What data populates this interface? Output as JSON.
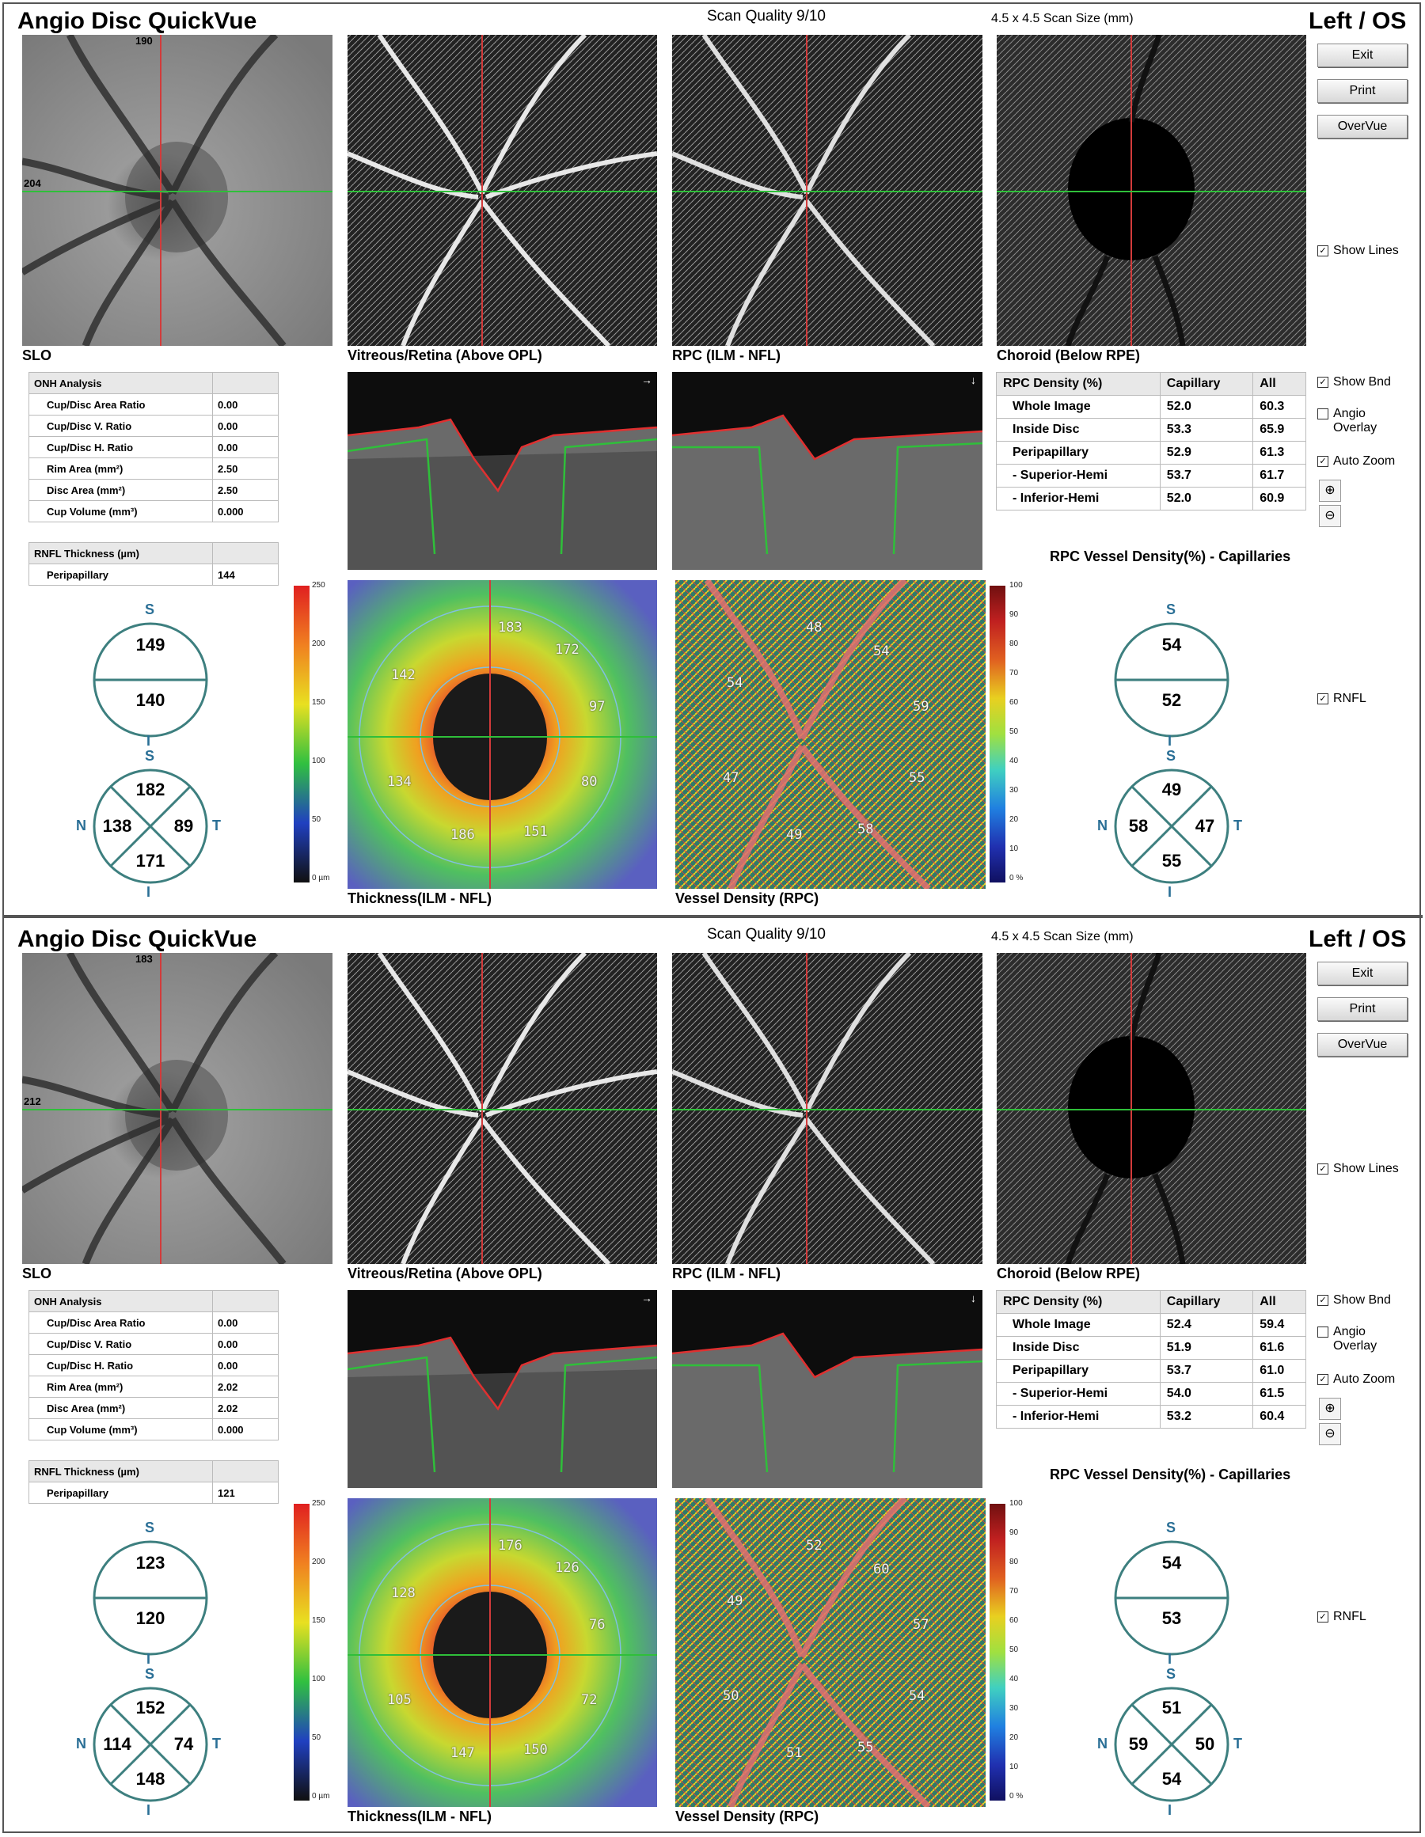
{
  "reports": [
    {
      "title": "Angio Disc QuickVue",
      "scan_quality": "Scan Quality 9/10",
      "scan_size": "4.5 x 4.5 Scan Size (mm)",
      "eye": "Left / OS",
      "buttons": [
        "Exit",
        "Print",
        "OverVue"
      ],
      "captions": {
        "slo": "SLO",
        "vitreous": "Vitreous/Retina (Above OPL)",
        "rpc": "RPC (ILM - NFL)",
        "choroid": "Choroid (Below RPE)",
        "thickness": "Thickness(ILM - NFL)",
        "vessel": "Vessel Density (RPC)"
      },
      "line_labels": {
        "vertical": "190",
        "horizontal": "204"
      },
      "checkboxes": {
        "show_lines": "Show Lines",
        "show_bnd": "Show Bnd",
        "angio_overlay": "Angio Overlay",
        "auto_zoom": "Auto Zoom",
        "rnfl": "RNFL"
      },
      "onh": {
        "header": "ONH Analysis",
        "rows": [
          {
            "label": "Cup/Disc Area Ratio",
            "value": "0.00"
          },
          {
            "label": "Cup/Disc V. Ratio",
            "value": "0.00"
          },
          {
            "label": "Cup/Disc H. Ratio",
            "value": "0.00"
          },
          {
            "label": "Rim Area (mm²)",
            "value": "2.50"
          },
          {
            "label": "Disc Area (mm²)",
            "value": "2.50"
          },
          {
            "label": "Cup Volume (mm³)",
            "value": "0.000"
          }
        ]
      },
      "rnfl": {
        "header": "RNFL Thickness (µm)",
        "label": "Peripapillary",
        "value": "144"
      },
      "rnfl_hemi": {
        "superior": "149",
        "inferior": "140"
      },
      "rnfl_quad": {
        "s": "182",
        "n": "138",
        "t": "89",
        "i": "171"
      },
      "rpc_table": {
        "header": [
          "RPC Density (%)",
          "Capillary",
          "All"
        ],
        "rows": [
          {
            "label": "Whole Image",
            "capillary": "52.0",
            "all": "60.3"
          },
          {
            "label": "Inside Disc",
            "capillary": "53.3",
            "all": "65.9"
          },
          {
            "label": "Peripapillary",
            "capillary": "52.9",
            "all": "61.3"
          },
          {
            "label": " - Superior-Hemi",
            "capillary": "53.7",
            "all": "61.7"
          },
          {
            "label": " - Inferior-Hemi",
            "capillary": "52.0",
            "all": "60.9"
          }
        ]
      },
      "rpc_title": "RPC Vessel Density(%) - Capillaries",
      "rpc_hemi": {
        "superior": "54",
        "inferior": "52"
      },
      "rpc_quad": {
        "s": "49",
        "n": "58",
        "t": "47",
        "i": "55"
      },
      "thickness_sectors": [
        "183",
        "172",
        "97",
        "80",
        "151",
        "186",
        "134",
        "142"
      ],
      "vessel_sectors": [
        "48",
        "54",
        "59",
        "55",
        "58",
        "49",
        "47",
        "54"
      ],
      "thickness_scale": [
        "250",
        "200",
        "150",
        "100",
        "50",
        "0 µm"
      ],
      "vessel_scale": [
        "100",
        "90",
        "80",
        "70",
        "60",
        "50",
        "40",
        "30",
        "20",
        "10",
        "0 %"
      ]
    },
    {
      "title": "Angio Disc QuickVue",
      "scan_quality": "Scan Quality 9/10",
      "scan_size": "4.5 x 4.5 Scan Size (mm)",
      "eye": "Left / OS",
      "buttons": [
        "Exit",
        "Print",
        "OverVue"
      ],
      "captions": {
        "slo": "SLO",
        "vitreous": "Vitreous/Retina (Above OPL)",
        "rpc": "RPC (ILM - NFL)",
        "choroid": "Choroid (Below RPE)",
        "thickness": "Thickness(ILM - NFL)",
        "vessel": "Vessel Density (RPC)"
      },
      "line_labels": {
        "vertical": "183",
        "horizontal": "212"
      },
      "checkboxes": {
        "show_lines": "Show Lines",
        "show_bnd": "Show Bnd",
        "angio_overlay": "Angio Overlay",
        "auto_zoom": "Auto Zoom",
        "rnfl": "RNFL"
      },
      "onh": {
        "header": "ONH Analysis",
        "rows": [
          {
            "label": "Cup/Disc Area Ratio",
            "value": "0.00"
          },
          {
            "label": "Cup/Disc V. Ratio",
            "value": "0.00"
          },
          {
            "label": "Cup/Disc H. Ratio",
            "value": "0.00"
          },
          {
            "label": "Rim Area (mm²)",
            "value": "2.02"
          },
          {
            "label": "Disc Area (mm²)",
            "value": "2.02"
          },
          {
            "label": "Cup Volume (mm³)",
            "value": "0.000"
          }
        ]
      },
      "rnfl": {
        "header": "RNFL Thickness (µm)",
        "label": "Peripapillary",
        "value": "121"
      },
      "rnfl_hemi": {
        "superior": "123",
        "inferior": "120"
      },
      "rnfl_quad": {
        "s": "152",
        "n": "114",
        "t": "74",
        "i": "148"
      },
      "rpc_table": {
        "header": [
          "RPC Density (%)",
          "Capillary",
          "All"
        ],
        "rows": [
          {
            "label": "Whole Image",
            "capillary": "52.4",
            "all": "59.4"
          },
          {
            "label": "Inside Disc",
            "capillary": "51.9",
            "all": "61.6"
          },
          {
            "label": "Peripapillary",
            "capillary": "53.7",
            "all": "61.0"
          },
          {
            "label": " - Superior-Hemi",
            "capillary": "54.0",
            "all": "61.5"
          },
          {
            "label": " - Inferior-Hemi",
            "capillary": "53.2",
            "all": "60.4"
          }
        ]
      },
      "rpc_title": "RPC Vessel Density(%) - Capillaries",
      "rpc_hemi": {
        "superior": "54",
        "inferior": "53"
      },
      "rpc_quad": {
        "s": "51",
        "n": "59",
        "t": "50",
        "i": "54"
      },
      "thickness_sectors": [
        "176",
        "126",
        "76",
        "72",
        "150",
        "147",
        "105",
        "128"
      ],
      "vessel_sectors": [
        "52",
        "60",
        "57",
        "54",
        "55",
        "51",
        "50",
        "49"
      ],
      "thickness_scale": [
        "250",
        "200",
        "150",
        "100",
        "50",
        "0 µm"
      ],
      "vessel_scale": [
        "100",
        "90",
        "80",
        "70",
        "60",
        "50",
        "40",
        "30",
        "20",
        "10",
        "0 %"
      ]
    }
  ],
  "colors": {
    "teal": "#2a6f96",
    "disc_line": "#3d7f7f",
    "red_line": "#d23b3b",
    "green_line": "#2fbf3a"
  },
  "icons": [
    "zoom-in-icon",
    "zoom-out-icon",
    "checkbox-icon"
  ]
}
